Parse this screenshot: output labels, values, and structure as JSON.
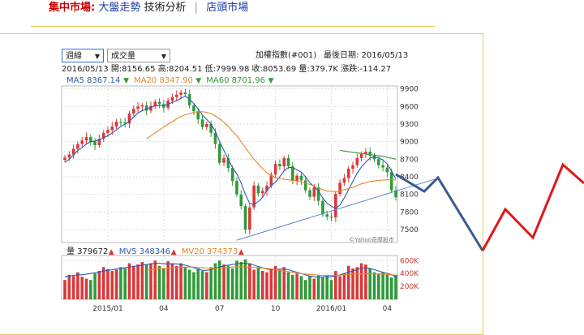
{
  "header": {
    "section": "集中市場:",
    "link1": "大盤走勢",
    "link2": "技術分析",
    "separator": "|",
    "link3": "店頭市場"
  },
  "controls": {
    "period": "週線",
    "indicator": "成交量"
  },
  "info": {
    "index_name": "加權指數(#001)",
    "last_date_label": "最後日期: 2016/05/13",
    "bar_line": "2016/05/13  開:8156.65 高:8204.51 低:7999.98 收:8053.69 量:379.7K 漲跌:-114.27",
    "ma_items": [
      {
        "label": "MA5 8367.14",
        "color": "#2b5bb5"
      },
      {
        "label": "MA20 8347.90",
        "color": "#e8862a"
      },
      {
        "label": "MA60 8701.96",
        "color": "#2f9a3a"
      }
    ],
    "vol_items": [
      {
        "label": "量 379672",
        "color": "#222222"
      },
      {
        "label": "MV5 348346",
        "color": "#2b5bb5"
      },
      {
        "label": "MV20 374373",
        "color": "#e8862a"
      }
    ],
    "watermark": "©Yahoo奇摩股市"
  },
  "colors": {
    "up": "#d9383a",
    "down": "#2f9a3a",
    "ma5": "#2b5bb5",
    "ma20": "#e8862a",
    "ma60": "#2f9a3a",
    "trend": "#5b87c9",
    "overlay_blue": "#3a5a8c",
    "overlay_red": "#e01818"
  },
  "chart_data": {
    "type": "candlestick",
    "title": "加權指數(#001)",
    "price_ylim": [
      7280,
      9950
    ],
    "price_ticks": [
      "9900",
      "9600",
      "9300",
      "9000",
      "8700",
      "8400",
      "8100",
      "7800",
      "7500"
    ],
    "volume_ylim": [
      0,
      680
    ],
    "volume_ticks": [
      "600K",
      "400K",
      "200K"
    ],
    "x_ticks": [
      "2015/01",
      "04",
      "07",
      "10",
      "2016/01",
      "04"
    ],
    "x_tick_week_index": [
      10,
      23,
      36,
      49,
      62,
      75
    ],
    "last_bar": {
      "date": "2016/05/13",
      "open": 8156.65,
      "high": 8204.51,
      "low": 7999.98,
      "close": 8053.69,
      "volume": 379.7
    },
    "close": [
      8730,
      8780,
      8880,
      8960,
      9020,
      9080,
      9000,
      8940,
      9050,
      9150,
      9200,
      9260,
      9340,
      9330,
      9310,
      9480,
      9560,
      9600,
      9620,
      9530,
      9610,
      9680,
      9640,
      9580,
      9700,
      9760,
      9800,
      9840,
      9810,
      9620,
      9520,
      9380,
      9250,
      9300,
      9150,
      8960,
      8640,
      8720,
      8550,
      8330,
      8100,
      7900,
      7500,
      7880,
      8250,
      8120,
      8160,
      8250,
      8440,
      8620,
      8580,
      8720,
      8580,
      8330,
      8420,
      8340,
      8170,
      8060,
      8220,
      7990,
      7760,
      7720,
      7710,
      8110,
      8300,
      8380,
      8540,
      8600,
      8720,
      8790,
      8830,
      8760,
      8700,
      8600,
      8560,
      8480,
      8170,
      8053
    ],
    "volume": [
      300,
      380,
      360,
      420,
      350,
      320,
      300,
      400,
      440,
      500,
      470,
      440,
      460,
      500,
      480,
      560,
      520,
      540,
      580,
      540,
      560,
      600,
      520,
      480,
      590,
      560,
      520,
      560,
      500,
      460,
      420,
      480,
      440,
      420,
      500,
      560,
      600,
      540,
      520,
      480,
      600,
      580,
      620,
      560,
      460,
      500,
      440,
      420,
      480,
      520,
      460,
      500,
      420,
      380,
      400,
      360,
      300,
      360,
      320,
      380,
      340,
      380,
      300,
      440,
      360,
      400,
      520,
      480,
      500,
      560,
      540,
      480,
      420,
      400,
      420,
      380,
      340,
      380
    ],
    "ma5": [
      8650,
      8700,
      8770,
      8850,
      8900,
      8960,
      9000,
      9010,
      9030,
      9070,
      9100,
      9150,
      9200,
      9260,
      9300,
      9350,
      9420,
      9490,
      9530,
      9560,
      9590,
      9610,
      9620,
      9620,
      9640,
      9670,
      9700,
      9740,
      9780,
      9720,
      9650,
      9560,
      9450,
      9380,
      9300,
      9180,
      9000,
      8850,
      8700,
      8560,
      8450,
      8300,
      8100,
      7950,
      7930,
      7980,
      8050,
      8170,
      8250,
      8310,
      8400,
      8500,
      8560,
      8560,
      8520,
      8480,
      8400,
      8300,
      8230,
      8160,
      8040,
      7950,
      7900,
      7860,
      7920,
      8040,
      8180,
      8320,
      8460,
      8570,
      8650,
      8720,
      8740,
      8720,
      8690,
      8620,
      8500,
      8367
    ],
    "ma20": [
      null,
      null,
      null,
      null,
      null,
      null,
      null,
      null,
      null,
      null,
      null,
      null,
      null,
      null,
      null,
      null,
      null,
      null,
      null,
      9050,
      9100,
      9150,
      9200,
      9250,
      9300,
      9340,
      9390,
      9430,
      9460,
      9480,
      9500,
      9510,
      9510,
      9500,
      9480,
      9440,
      9390,
      9330,
      9260,
      9180,
      9100,
      9000,
      8900,
      8800,
      8700,
      8620,
      8540,
      8470,
      8420,
      8390,
      8370,
      8360,
      8350,
      8340,
      8330,
      8310,
      8290,
      8270,
      8240,
      8210,
      8180,
      8160,
      8150,
      8150,
      8160,
      8180,
      8200,
      8220,
      8250,
      8280,
      8300,
      8320,
      8330,
      8340,
      8345,
      8350,
      8350,
      8348
    ],
    "ma60": [
      null,
      null,
      null,
      null,
      null,
      null,
      null,
      null,
      null,
      null,
      null,
      null,
      null,
      null,
      null,
      null,
      null,
      null,
      null,
      null,
      null,
      null,
      null,
      null,
      null,
      null,
      null,
      null,
      null,
      null,
      null,
      null,
      null,
      null,
      null,
      null,
      null,
      null,
      null,
      null,
      null,
      null,
      null,
      null,
      null,
      null,
      null,
      null,
      null,
      null,
      null,
      null,
      null,
      null,
      null,
      null,
      null,
      null,
      null,
      null,
      null,
      null,
      null,
      null,
      8850,
      8840,
      8830,
      8820,
      8810,
      8800,
      8790,
      8780,
      8770,
      8760,
      8750,
      8735,
      8718,
      8702
    ],
    "mv5": [
      350,
      360,
      370,
      380,
      380,
      390,
      400,
      410,
      420,
      440,
      450,
      460,
      470,
      480,
      490,
      500,
      510,
      520,
      530,
      540,
      550,
      560,
      560,
      550,
      550,
      550,
      550,
      540,
      530,
      510,
      490,
      470,
      450,
      450,
      460,
      480,
      500,
      520,
      530,
      540,
      550,
      560,
      560,
      550,
      530,
      510,
      490,
      470,
      460,
      460,
      470,
      470,
      460,
      440,
      420,
      400,
      380,
      360,
      350,
      340,
      350,
      350,
      350,
      360,
      380,
      400,
      420,
      440,
      460,
      480,
      490,
      480,
      460,
      440,
      420,
      400,
      380,
      348
    ],
    "mv20": [
      null,
      null,
      null,
      null,
      null,
      null,
      null,
      null,
      null,
      null,
      null,
      null,
      null,
      null,
      null,
      null,
      null,
      null,
      null,
      450,
      460,
      470,
      475,
      480,
      485,
      490,
      495,
      500,
      500,
      500,
      500,
      495,
      490,
      485,
      480,
      480,
      485,
      490,
      495,
      500,
      505,
      505,
      505,
      500,
      495,
      490,
      485,
      480,
      470,
      460,
      450,
      440,
      430,
      420,
      410,
      400,
      390,
      385,
      380,
      375,
      372,
      370,
      370,
      372,
      375,
      380,
      385,
      390,
      392,
      394,
      396,
      396,
      395,
      392,
      388,
      384,
      380,
      374
    ],
    "trendline": {
      "from": {
        "week": 40,
        "price": 7320
      },
      "to": {
        "week": 86,
        "price": 8360
      }
    }
  }
}
